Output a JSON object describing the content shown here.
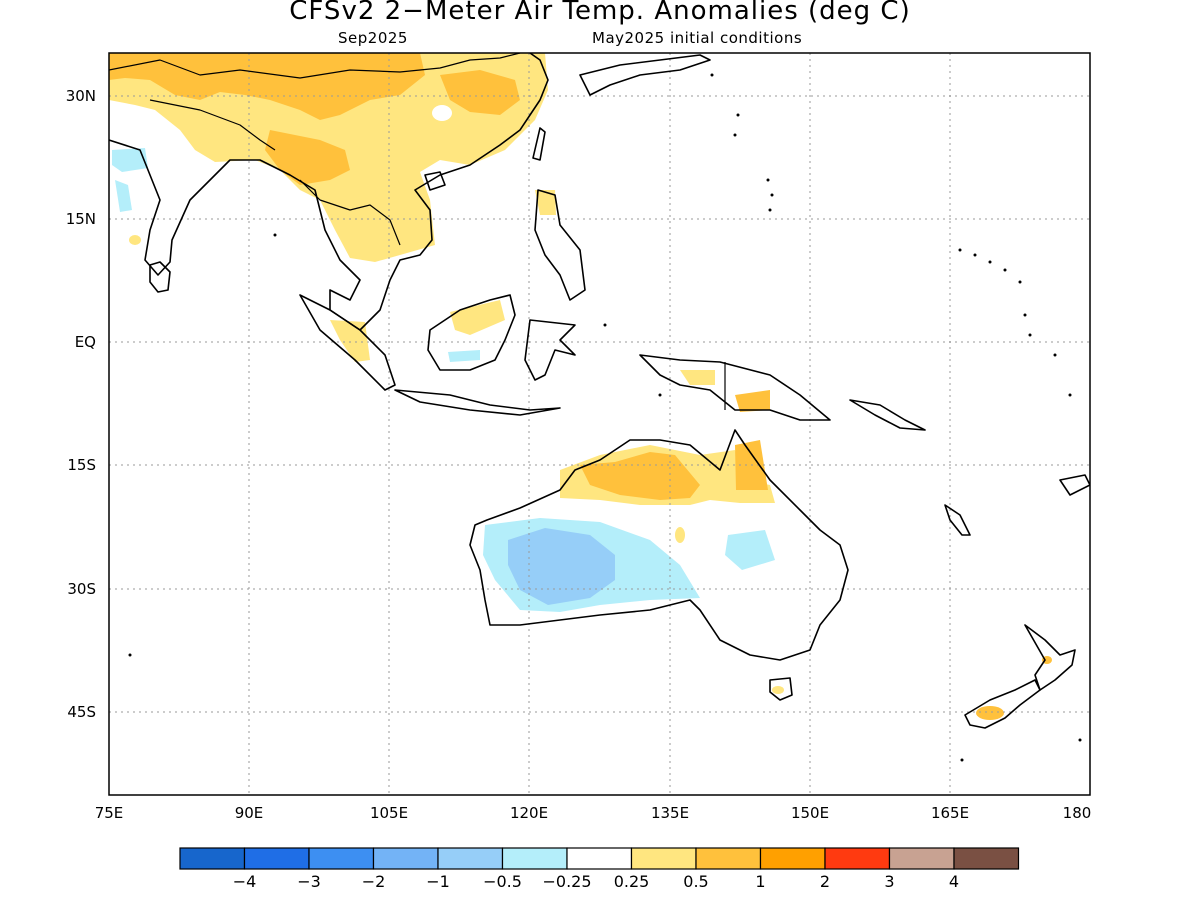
{
  "title": "CFSv2 2−Meter Air Temp. Anomalies (deg C)",
  "subtitle_left": "Sep2025",
  "subtitle_right": "May2025 initial conditions",
  "lat_labels": [
    "30N",
    "15N",
    "EQ",
    "15S",
    "30S",
    "45S"
  ],
  "lon_labels": [
    "75E",
    "90E",
    "105E",
    "120E",
    "135E",
    "150E",
    "165E",
    "180"
  ],
  "colorbar": {
    "colors": [
      "#1766cc",
      "#1f6ee6",
      "#3d8ff2",
      "#73b3f6",
      "#96cef8",
      "#b4eefa",
      "#ffffff",
      "#ffe680",
      "#ffc13c",
      "#ffa000",
      "#ff3a10",
      "#c8a292",
      "#7a5043"
    ],
    "labels": [
      "−4",
      "−3",
      "−2",
      "−1",
      "−0.5",
      "−0.25",
      "0.25",
      "0.5",
      "1",
      "2",
      "3",
      "4"
    ]
  },
  "legend_colors": {
    "land_outline": "#000000",
    "grid": "#9a9a9a"
  }
}
